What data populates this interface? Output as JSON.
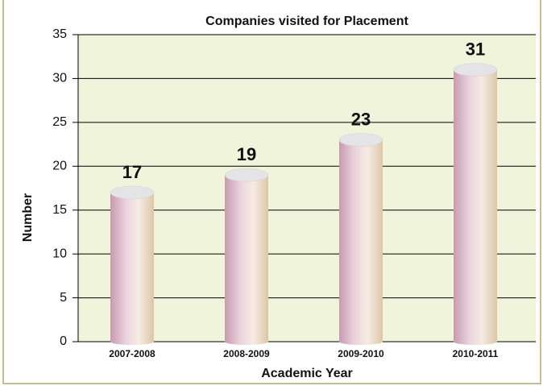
{
  "chart_data": {
    "type": "bar",
    "title": "Companies visited for Placement",
    "x_label": "Academic Year",
    "y_label": "Number",
    "categories": [
      "2007-2008",
      "2008-2009",
      "2009-2010",
      "2010-2011"
    ],
    "values": [
      17,
      19,
      23,
      31
    ],
    "ylim": [
      0,
      35
    ],
    "yticks": [
      0,
      5,
      10,
      15,
      20,
      25,
      30,
      35
    ],
    "grid": true,
    "background": "#eff4da"
  }
}
